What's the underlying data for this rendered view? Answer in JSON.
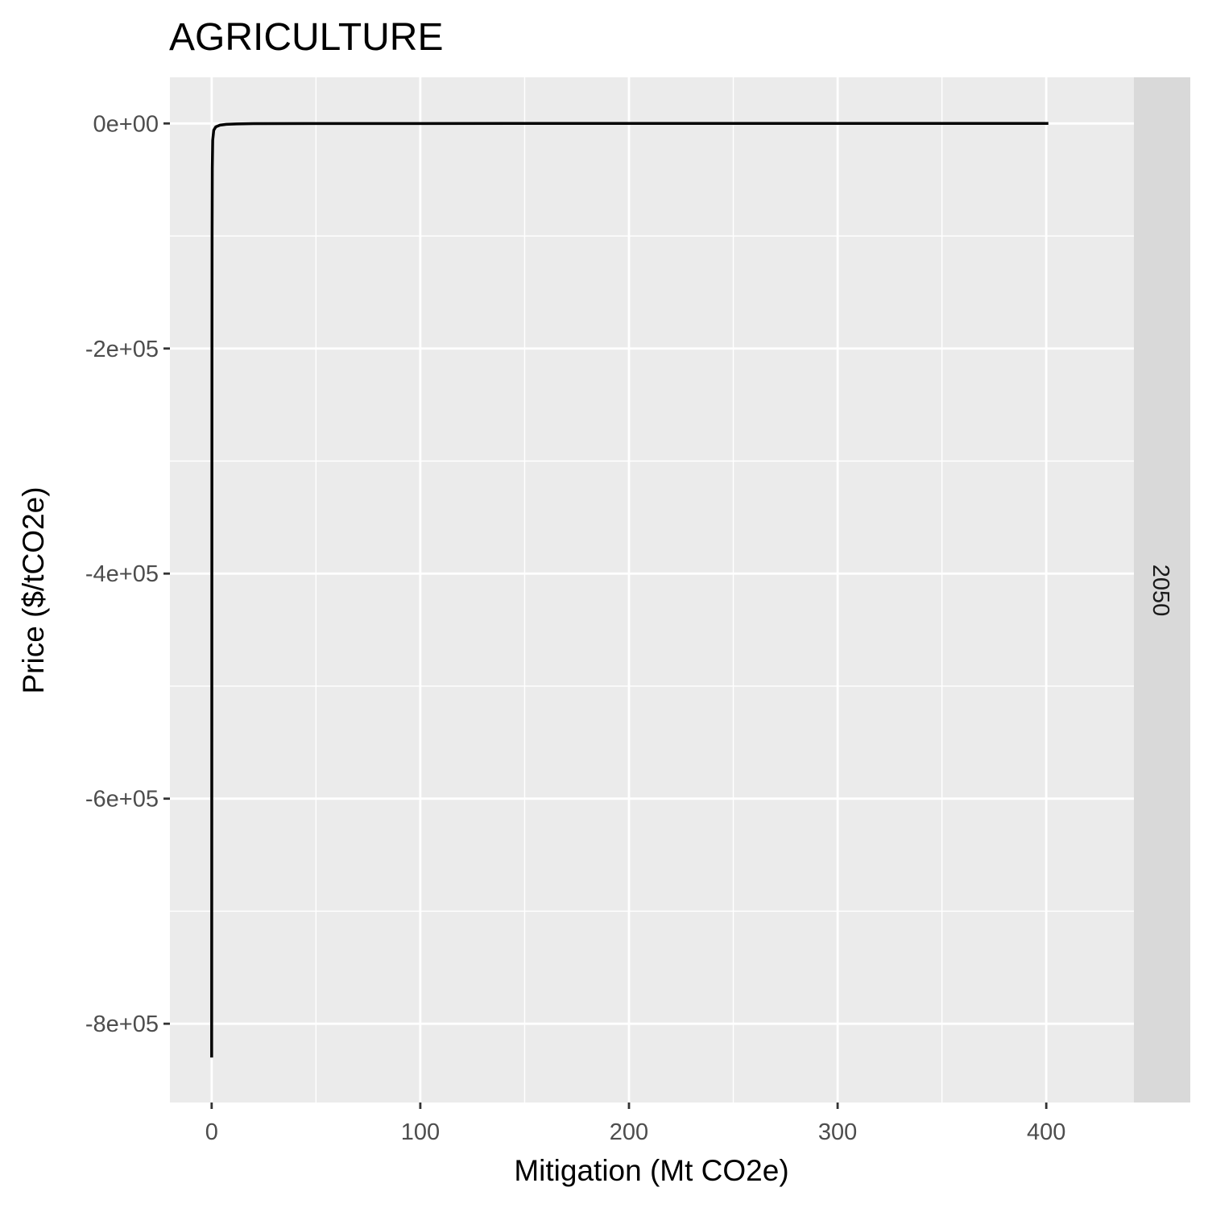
{
  "chart_data": {
    "type": "line",
    "title": "AGRICULTURE",
    "xlabel": "Mitigation (Mt CO2e)",
    "ylabel": "Price ($/tCO2e)",
    "facet_label": "2050",
    "xlim": [
      -20,
      442
    ],
    "ylim": [
      -870000,
      41000
    ],
    "x_ticks": [
      0,
      100,
      200,
      300,
      400
    ],
    "x_tick_labels": [
      "0",
      "100",
      "200",
      "300",
      "400"
    ],
    "y_ticks": [
      0,
      -200000,
      -400000,
      -600000,
      -800000
    ],
    "y_tick_labels": [
      "0e+00",
      "-2e+05",
      "-4e+05",
      "-6e+05",
      "-8e+05"
    ],
    "grid": true,
    "legend": "none",
    "series": [
      {
        "color": "#000000",
        "x": [
          0.0,
          0.0,
          0.05,
          0.1,
          0.15,
          0.2,
          0.3,
          0.5,
          1,
          2,
          4,
          7,
          12,
          20,
          50,
          100,
          200,
          300,
          401
        ],
        "y": [
          -830000,
          -820000,
          -650000,
          -400000,
          -200000,
          -100000,
          -40000,
          -15000,
          -6000,
          -3000,
          -1500,
          -800,
          -400,
          -150,
          -50,
          -20,
          -5,
          -1,
          0
        ]
      }
    ]
  },
  "colors": {
    "panel_bg": "#ebebeb",
    "strip_bg": "#d9d9d9",
    "grid_major": "#ffffff",
    "line": "#000000"
  }
}
